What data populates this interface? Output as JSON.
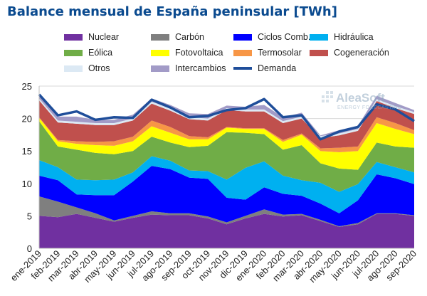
{
  "title": "Balance mensual de España peninsular [TWh]",
  "watermark": {
    "brand": "AleaSoft",
    "tagline": "ENERGY FORECASTING"
  },
  "chart_data": {
    "type": "area",
    "stacked": true,
    "title": "Balance mensual de España peninsular [TWh]",
    "xlabel": "",
    "ylabel": "",
    "ylim": [
      0,
      25
    ],
    "yticks": [
      0,
      5,
      10,
      15,
      20,
      25
    ],
    "grid": true,
    "legend_position": "top",
    "categories": [
      "ene-2019",
      "feb-2019",
      "mar-2019",
      "abr-2019",
      "may-2019",
      "jun-2019",
      "jul-2019",
      "ago-2019",
      "sep-2019",
      "oct-2019",
      "nov-2019",
      "dic-2019",
      "ene-2020",
      "feb-2020",
      "mar-2020",
      "abr-2020",
      "may-2020",
      "jun-2020",
      "jul-2020",
      "ago-2020",
      "sep-2020"
    ],
    "series": [
      {
        "name": "Nuclear",
        "color": "#7030a0",
        "values": [
          5.0,
          4.8,
          5.3,
          4.7,
          4.1,
          4.7,
          5.2,
          5.1,
          5.1,
          4.6,
          3.7,
          4.6,
          5.3,
          4.9,
          5.1,
          4.2,
          3.3,
          3.7,
          5.3,
          5.3,
          5.0
        ]
      },
      {
        "name": "Carbón",
        "color": "#7f7f7f",
        "values": [
          3.0,
          2.4,
          1.0,
          0.7,
          0.2,
          0.3,
          0.5,
          0.3,
          0.3,
          0.3,
          0.3,
          0.4,
          0.7,
          0.3,
          0.2,
          0.2,
          0.1,
          0.2,
          0.1,
          0.1,
          0.1
        ]
      },
      {
        "name": "Ciclos Comb.",
        "color": "#0000ff",
        "values": [
          3.2,
          3.3,
          2.0,
          2.8,
          3.9,
          5.3,
          7.0,
          6.8,
          5.5,
          5.8,
          3.8,
          2.5,
          3.4,
          3.2,
          2.8,
          2.5,
          2.0,
          3.5,
          6.0,
          5.4,
          4.8
        ]
      },
      {
        "name": "Hidráulica",
        "color": "#00b0f0",
        "values": [
          2.4,
          2.0,
          2.3,
          2.3,
          2.4,
          1.4,
          1.5,
          1.3,
          1.1,
          1.2,
          2.8,
          4.9,
          4.0,
          2.8,
          2.4,
          3.2,
          3.3,
          2.5,
          1.9,
          1.7,
          1.8
        ]
      },
      {
        "name": "Eólica",
        "color": "#70ad47",
        "values": [
          6.0,
          3.2,
          4.6,
          4.2,
          3.9,
          3.3,
          3.0,
          2.8,
          3.6,
          3.9,
          7.3,
          5.4,
          4.2,
          4.0,
          5.4,
          3.0,
          3.6,
          2.2,
          3.0,
          3.2,
          3.8
        ]
      },
      {
        "name": "Fotovoltaica",
        "color": "#ffff00",
        "values": [
          0.5,
          0.8,
          0.9,
          1.2,
          1.3,
          1.5,
          1.6,
          1.5,
          1.2,
          1.0,
          0.7,
          0.6,
          0.8,
          1.2,
          1.6,
          1.9,
          2.5,
          2.9,
          3.0,
          2.7,
          2.1
        ]
      },
      {
        "name": "Termosolar",
        "color": "#f79646",
        "values": [
          0.1,
          0.2,
          0.4,
          0.5,
          0.7,
          0.7,
          0.9,
          0.9,
          0.5,
          0.3,
          0.1,
          0.1,
          0.1,
          0.3,
          0.2,
          0.4,
          0.7,
          0.7,
          0.9,
          0.9,
          0.6
        ]
      },
      {
        "name": "Cogeneración",
        "color": "#c0504d",
        "values": [
          2.6,
          2.7,
          2.7,
          2.6,
          2.5,
          2.5,
          2.6,
          2.5,
          2.6,
          2.6,
          2.6,
          2.6,
          2.6,
          2.6,
          2.3,
          1.6,
          1.9,
          2.4,
          2.5,
          2.3,
          2.5
        ]
      },
      {
        "name": "Otros",
        "color": "#dce9f4",
        "values": [
          0.3,
          0.3,
          0.3,
          0.3,
          0.3,
          0.3,
          0.3,
          0.3,
          0.3,
          0.3,
          0.3,
          0.3,
          0.3,
          0.3,
          0.3,
          0.3,
          0.3,
          0.3,
          0.3,
          0.3,
          0.3
        ]
      },
      {
        "name": "Intercambios",
        "color": "#a29bc7",
        "values": [
          0.5,
          0.6,
          0.8,
          0.5,
          0.5,
          0.6,
          0.5,
          0.6,
          0.6,
          0.7,
          0.4,
          0.4,
          0.7,
          0.6,
          0.6,
          0.1,
          0.5,
          0.5,
          0.5,
          0.5,
          0.3
        ]
      }
    ],
    "line": {
      "name": "Demanda",
      "color": "#1f4e9a",
      "values": [
        23.7,
        20.5,
        21.1,
        19.8,
        20.2,
        20.1,
        22.9,
        21.7,
        20.2,
        20.4,
        21.3,
        21.6,
        23.0,
        20.2,
        20.5,
        16.8,
        18.0,
        18.7,
        22.2,
        21.4,
        19.6
      ]
    }
  }
}
